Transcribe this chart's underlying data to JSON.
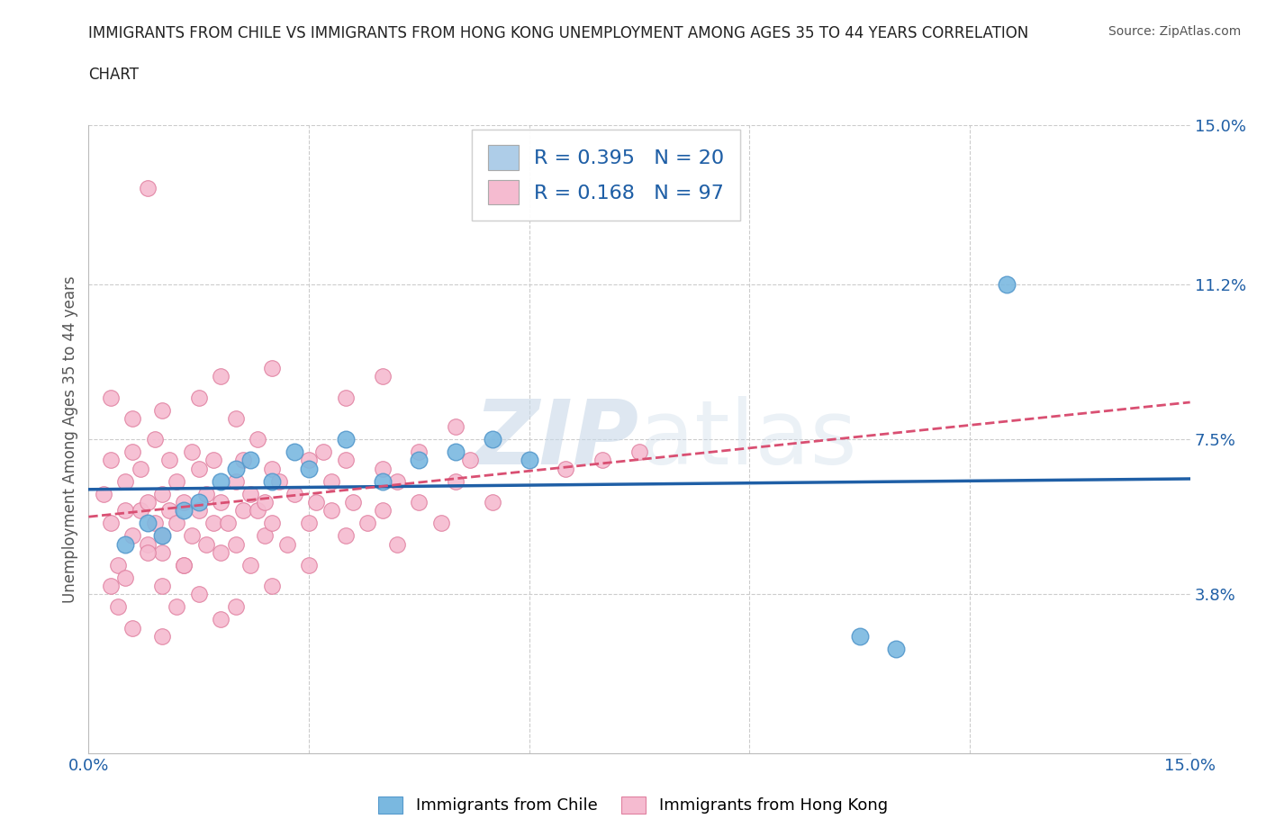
{
  "title_line1": "IMMIGRANTS FROM CHILE VS IMMIGRANTS FROM HONG KONG UNEMPLOYMENT AMONG AGES 35 TO 44 YEARS CORRELATION",
  "title_line2": "CHART",
  "source": "Source: ZipAtlas.com",
  "ylabel": "Unemployment Among Ages 35 to 44 years",
  "xlim": [
    0,
    15
  ],
  "ylim": [
    0,
    15
  ],
  "ytick_positions": [
    3.8,
    7.5,
    11.2,
    15.0
  ],
  "ytick_labels": [
    "3.8%",
    "7.5%",
    "11.2%",
    "15.0%"
  ],
  "watermark_zip": "ZIP",
  "watermark_atlas": "atlas",
  "legend_entries": [
    {
      "label_r": "R = 0.395",
      "label_n": "N = 20",
      "color": "#aecde8"
    },
    {
      "label_r": "R = 0.168",
      "label_n": "N = 97",
      "color": "#f5bbd0"
    }
  ],
  "chile_color": "#7ab8e0",
  "chile_edge": "#5599cc",
  "hk_color": "#f5bbd0",
  "hk_edge": "#e080a0",
  "trend_chile_color": "#1f5fa6",
  "trend_hk_color": "#d94f72",
  "grid_color": "#cccccc",
  "background_color": "#ffffff",
  "chile_points": [
    [
      0.5,
      5.0
    ],
    [
      0.8,
      5.5
    ],
    [
      1.0,
      5.2
    ],
    [
      1.3,
      5.8
    ],
    [
      1.5,
      6.0
    ],
    [
      1.8,
      6.5
    ],
    [
      2.0,
      6.8
    ],
    [
      2.2,
      7.0
    ],
    [
      2.5,
      6.5
    ],
    [
      2.8,
      7.2
    ],
    [
      3.0,
      6.8
    ],
    [
      3.5,
      7.5
    ],
    [
      4.0,
      6.5
    ],
    [
      4.5,
      7.0
    ],
    [
      5.0,
      7.2
    ],
    [
      5.5,
      7.5
    ],
    [
      6.0,
      7.0
    ],
    [
      10.5,
      2.8
    ],
    [
      11.0,
      2.5
    ],
    [
      12.5,
      11.2
    ]
  ],
  "hk_points": [
    [
      0.2,
      6.2
    ],
    [
      0.3,
      5.5
    ],
    [
      0.3,
      7.0
    ],
    [
      0.4,
      4.5
    ],
    [
      0.5,
      5.8
    ],
    [
      0.5,
      6.5
    ],
    [
      0.6,
      5.2
    ],
    [
      0.6,
      7.2
    ],
    [
      0.7,
      5.8
    ],
    [
      0.7,
      6.8
    ],
    [
      0.8,
      5.0
    ],
    [
      0.8,
      6.0
    ],
    [
      0.9,
      5.5
    ],
    [
      0.9,
      7.5
    ],
    [
      1.0,
      5.2
    ],
    [
      1.0,
      6.2
    ],
    [
      1.0,
      4.8
    ],
    [
      1.1,
      5.8
    ],
    [
      1.1,
      7.0
    ],
    [
      1.2,
      5.5
    ],
    [
      1.2,
      6.5
    ],
    [
      1.3,
      4.5
    ],
    [
      1.3,
      6.0
    ],
    [
      1.4,
      5.2
    ],
    [
      1.4,
      7.2
    ],
    [
      1.5,
      5.8
    ],
    [
      1.5,
      6.8
    ],
    [
      1.6,
      5.0
    ],
    [
      1.6,
      6.2
    ],
    [
      1.7,
      5.5
    ],
    [
      1.7,
      7.0
    ],
    [
      1.8,
      4.8
    ],
    [
      1.8,
      6.0
    ],
    [
      1.9,
      5.5
    ],
    [
      2.0,
      6.5
    ],
    [
      2.0,
      5.0
    ],
    [
      2.1,
      7.0
    ],
    [
      2.1,
      5.8
    ],
    [
      2.2,
      6.2
    ],
    [
      2.2,
      4.5
    ],
    [
      2.3,
      5.8
    ],
    [
      2.3,
      7.5
    ],
    [
      2.4,
      6.0
    ],
    [
      2.4,
      5.2
    ],
    [
      2.5,
      6.8
    ],
    [
      2.5,
      5.5
    ],
    [
      2.6,
      6.5
    ],
    [
      2.7,
      5.0
    ],
    [
      2.8,
      6.2
    ],
    [
      3.0,
      7.0
    ],
    [
      3.0,
      5.5
    ],
    [
      3.1,
      6.0
    ],
    [
      3.2,
      7.2
    ],
    [
      3.3,
      5.8
    ],
    [
      3.3,
      6.5
    ],
    [
      3.5,
      5.2
    ],
    [
      3.5,
      7.0
    ],
    [
      3.6,
      6.0
    ],
    [
      3.8,
      5.5
    ],
    [
      4.0,
      6.8
    ],
    [
      4.0,
      5.8
    ],
    [
      4.2,
      6.5
    ],
    [
      4.2,
      5.0
    ],
    [
      4.5,
      6.0
    ],
    [
      4.5,
      7.2
    ],
    [
      4.8,
      5.5
    ],
    [
      5.0,
      6.5
    ],
    [
      5.2,
      7.0
    ],
    [
      5.5,
      6.0
    ],
    [
      0.8,
      13.5
    ],
    [
      1.0,
      4.0
    ],
    [
      1.2,
      3.5
    ],
    [
      1.5,
      3.8
    ],
    [
      1.8,
      3.2
    ],
    [
      2.0,
      3.5
    ],
    [
      0.5,
      4.2
    ],
    [
      0.8,
      4.8
    ],
    [
      1.3,
      4.5
    ],
    [
      2.5,
      4.0
    ],
    [
      3.0,
      4.5
    ],
    [
      0.3,
      8.5
    ],
    [
      0.6,
      8.0
    ],
    [
      1.0,
      8.2
    ],
    [
      1.5,
      8.5
    ],
    [
      2.0,
      8.0
    ],
    [
      1.8,
      9.0
    ],
    [
      2.5,
      9.2
    ],
    [
      3.5,
      8.5
    ],
    [
      4.0,
      9.0
    ],
    [
      5.0,
      7.8
    ],
    [
      0.4,
      3.5
    ],
    [
      0.6,
      3.0
    ],
    [
      1.0,
      2.8
    ],
    [
      0.3,
      4.0
    ],
    [
      6.5,
      6.8
    ],
    [
      7.0,
      7.0
    ],
    [
      7.5,
      7.2
    ]
  ]
}
